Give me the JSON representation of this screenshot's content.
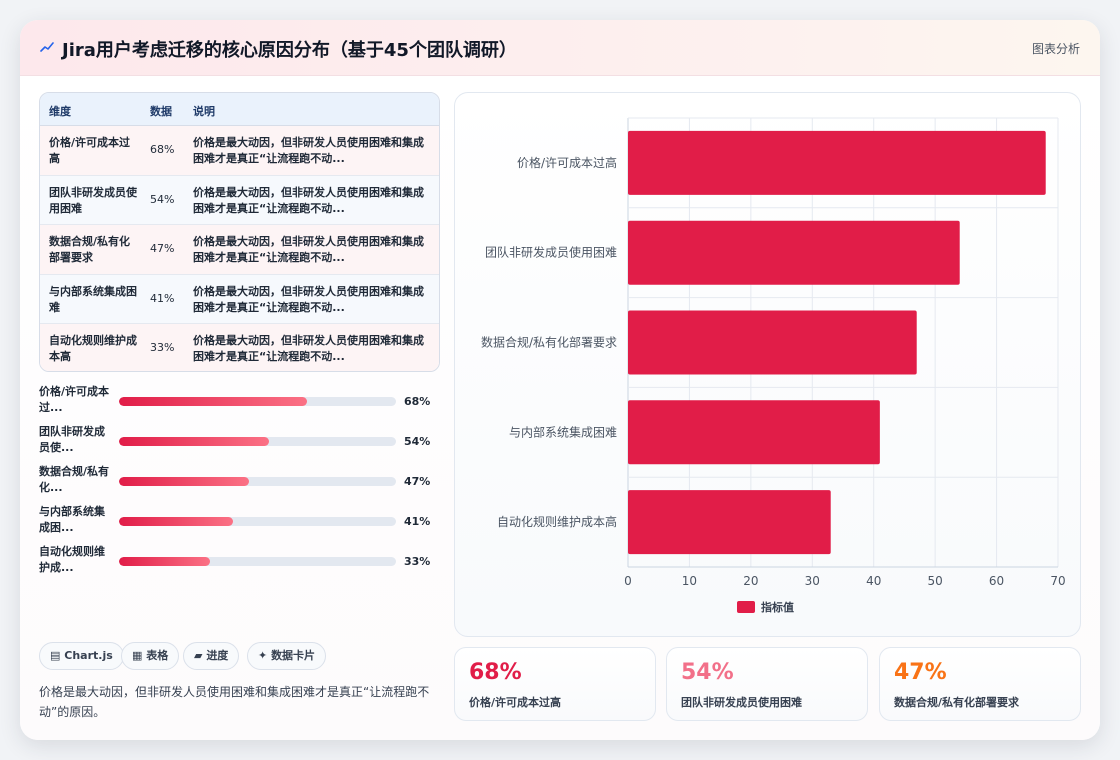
{
  "header": {
    "title": "Jira用户考虑迁移的核心原因分布（基于45个团队调研）",
    "tag": "图表分析"
  },
  "table": {
    "headers": [
      "维度",
      "数据",
      "说明"
    ],
    "rows": [
      {
        "dim": "价格/许可成本过高",
        "val": "68%",
        "desc": "价格是最大动因，但非研发人员使用困难和集成困难才是真正“让流程跑不动..."
      },
      {
        "dim": "团队非研发成员使用困难",
        "val": "54%",
        "desc": "价格是最大动因，但非研发人员使用困难和集成困难才是真正“让流程跑不动..."
      },
      {
        "dim": "数据合规/私有化部署要求",
        "val": "47%",
        "desc": "价格是最大动因，但非研发人员使用困难和集成困难才是真正“让流程跑不动..."
      },
      {
        "dim": "与内部系统集成困难",
        "val": "41%",
        "desc": "价格是最大动因，但非研发人员使用困难和集成困难才是真正“让流程跑不动..."
      },
      {
        "dim": "自动化规则维护成本高",
        "val": "33%",
        "desc": "价格是最大动因，但非研发人员使用困难和集成困难才是真正“让流程跑不动..."
      }
    ]
  },
  "progress": [
    {
      "label": "价格/许可成本过...",
      "value": 68,
      "text": "68%"
    },
    {
      "label": "团队非研发成员使...",
      "value": 54,
      "text": "54%"
    },
    {
      "label": "数据合规/私有化...",
      "value": 47,
      "text": "47%"
    },
    {
      "label": "与内部系统集成困...",
      "value": 41,
      "text": "41%"
    },
    {
      "label": "自动化规则维护成...",
      "value": 33,
      "text": "33%"
    }
  ],
  "tags": [
    {
      "icon": "chart-icon",
      "glyph": "▤",
      "label": "Chart.js"
    },
    {
      "icon": "table-icon",
      "glyph": "▦",
      "label": "表格"
    },
    {
      "icon": "progress-icon",
      "glyph": "▰",
      "label": "进度"
    },
    {
      "icon": "sparkle-icon",
      "glyph": "✦",
      "label": "数据卡片"
    }
  ],
  "note": "价格是最大动因，但非研发人员使用困难和集成困难才是真正“让流程跑不动”的原因。",
  "stats": [
    {
      "value": "68%",
      "label": "价格/许可成本过高",
      "color": "#e11d48"
    },
    {
      "value": "54%",
      "label": "团队非研发成员使用困难",
      "color": "#f27089"
    },
    {
      "value": "47%",
      "label": "数据合规/私有化部署要求",
      "color": "#f97316"
    }
  ],
  "colors": {
    "bar": "#e11d48",
    "accent": "#e11d48",
    "header_icon": "#2563eb"
  },
  "chart_data": {
    "type": "bar",
    "orientation": "horizontal",
    "categories": [
      "价格/许可成本过高",
      "团队非研发成员使用困难",
      "数据合规/私有化部署要求",
      "与内部系统集成困难",
      "自动化规则维护成本高"
    ],
    "series": [
      {
        "name": "指标值",
        "values": [
          68,
          54,
          47,
          41,
          33
        ]
      }
    ],
    "xlim": [
      0,
      70
    ],
    "xticks": [
      0,
      10,
      20,
      30,
      40,
      50,
      60,
      70
    ],
    "grid": true,
    "legend": "bottom"
  }
}
